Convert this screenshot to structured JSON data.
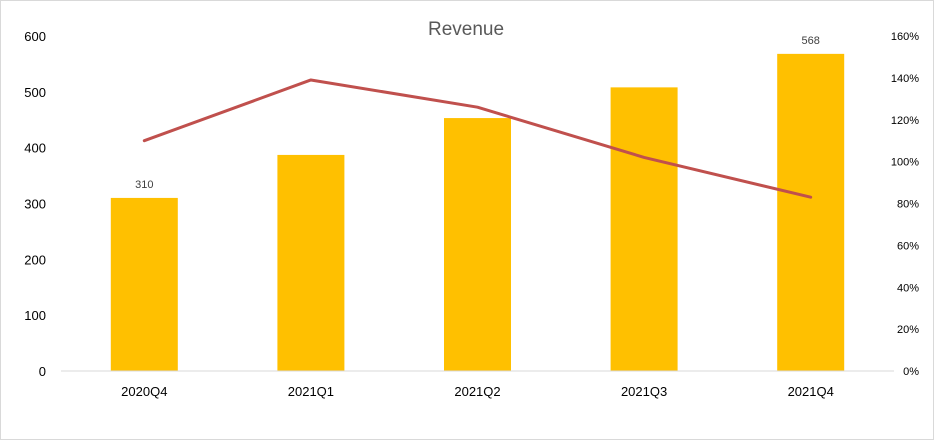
{
  "chart_data": {
    "type": "bar",
    "title": "Revenue",
    "categories": [
      "2020Q4",
      "2021Q1",
      "2021Q2",
      "2021Q3",
      "2021Q4"
    ],
    "series": [
      {
        "type": "bar",
        "axis": "left",
        "values": [
          310,
          387,
          453,
          508,
          568
        ],
        "color": "#FFC000"
      },
      {
        "type": "line",
        "axis": "right",
        "values": [
          1.1,
          1.39,
          1.26,
          1.02,
          0.83
        ],
        "color": "#C0504D"
      }
    ],
    "data_labels": [
      {
        "index": 0,
        "text": "310"
      },
      {
        "index": 4,
        "text": "568"
      }
    ],
    "y_left": {
      "range": [
        0,
        600
      ],
      "ticks": [
        0,
        100,
        200,
        300,
        400,
        500,
        600
      ],
      "tick_labels": [
        "0",
        "100",
        "200",
        "300",
        "400",
        "500",
        "600"
      ]
    },
    "y_right": {
      "range": [
        0,
        1.6
      ],
      "ticks": [
        0,
        0.2,
        0.4,
        0.6,
        0.8,
        1.0,
        1.2,
        1.4,
        1.6
      ],
      "tick_labels": [
        "0%",
        "20%",
        "40%",
        "60%",
        "80%",
        "100%",
        "120%",
        "140%",
        "160%"
      ]
    },
    "grid": false,
    "legend": "none"
  }
}
